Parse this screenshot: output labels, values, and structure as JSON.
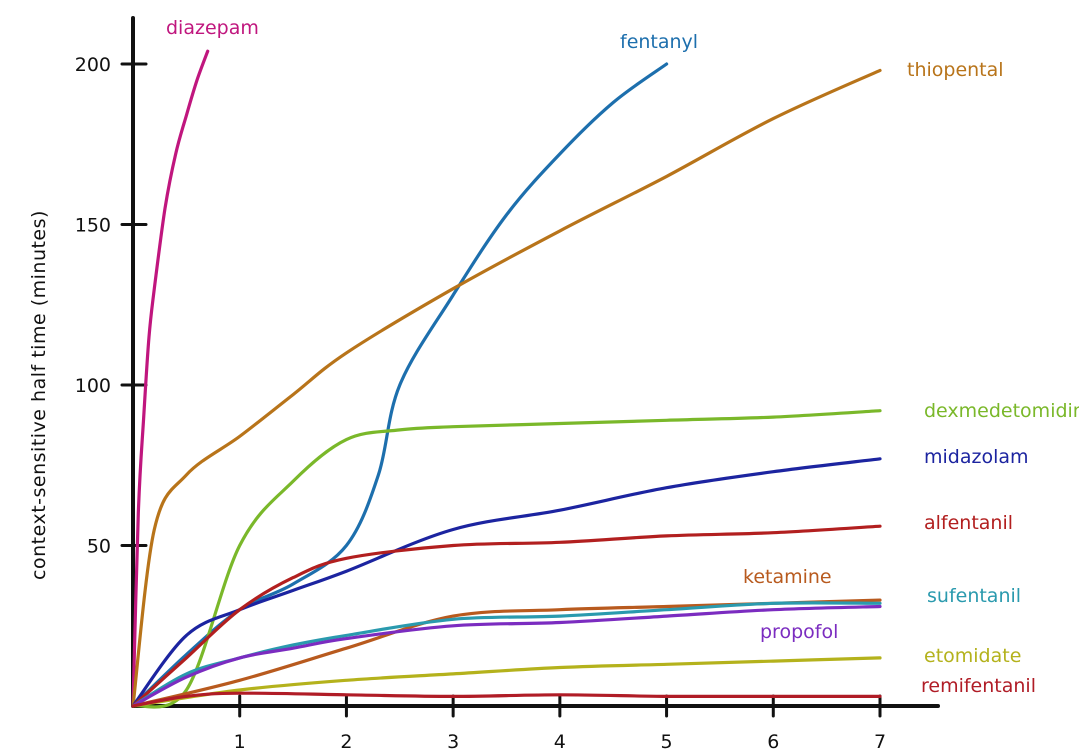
{
  "chart_data": {
    "type": "line",
    "title": "",
    "xlabel": "",
    "ylabel": "context-sensitive half time (minutes)",
    "xlim": [
      0,
      7.2
    ],
    "ylim": [
      0,
      200
    ],
    "x_ticks": [
      1,
      2,
      3,
      4,
      5,
      6,
      7
    ],
    "y_ticks": [
      50,
      100,
      150,
      200
    ],
    "grid": false,
    "legend": "direct labels at line ends",
    "series": [
      {
        "name": "diazepam",
        "color": "#c0167e",
        "x": [
          0,
          0.05,
          0.1,
          0.15,
          0.2,
          0.3,
          0.4,
          0.5,
          0.6,
          0.7
        ],
        "y": [
          0,
          60,
          90,
          115,
          130,
          155,
          172,
          184,
          195,
          204
        ]
      },
      {
        "name": "fentanyl",
        "color": "#1d6fad",
        "x": [
          0,
          0.5,
          1,
          1.5,
          2,
          2.3,
          2.5,
          3,
          3.5,
          4,
          4.5,
          5
        ],
        "y": [
          0,
          16,
          30,
          38,
          50,
          72,
          100,
          128,
          153,
          172,
          188,
          200
        ]
      },
      {
        "name": "thiopental",
        "color": "#b8741a",
        "x": [
          0,
          0.2,
          0.5,
          1,
          1.5,
          2,
          3,
          4,
          5,
          6,
          7
        ],
        "y": [
          0,
          55,
          72,
          84,
          97,
          110,
          130,
          148,
          165,
          183,
          198
        ]
      },
      {
        "name": "dexmedetomidine",
        "color": "#7ab82a",
        "x": [
          0,
          0.5,
          1,
          1.5,
          2,
          2.5,
          3,
          4,
          5,
          6,
          7
        ],
        "y": [
          0,
          5,
          50,
          70,
          83,
          86,
          87,
          88,
          89,
          90,
          92
        ]
      },
      {
        "name": "midazolam",
        "color": "#1c24a0",
        "x": [
          0,
          0.5,
          1,
          1.5,
          2,
          3,
          4,
          5,
          6,
          7
        ],
        "y": [
          0,
          22,
          30,
          36,
          42,
          55,
          61,
          68,
          73,
          77
        ]
      },
      {
        "name": "alfentanil",
        "color": "#b21f1f",
        "x": [
          0,
          0.5,
          1,
          1.5,
          2,
          3,
          4,
          5,
          6,
          7
        ],
        "y": [
          0,
          15,
          30,
          40,
          46,
          50,
          51,
          53,
          54,
          56
        ]
      },
      {
        "name": "ketamine",
        "color": "#b85a1e",
        "x": [
          0,
          1,
          2,
          3,
          4,
          5,
          6,
          7
        ],
        "y": [
          0,
          8,
          18,
          28,
          30,
          31,
          32,
          33
        ]
      },
      {
        "name": "sufentanil",
        "color": "#2a9aae",
        "x": [
          0,
          0.5,
          1,
          1.5,
          2,
          3,
          4,
          5,
          6,
          7
        ],
        "y": [
          0,
          10,
          15,
          19,
          22,
          27,
          28,
          30,
          32,
          32
        ]
      },
      {
        "name": "propofol",
        "color": "#7b2cc0",
        "x": [
          0,
          0.5,
          1,
          1.5,
          2,
          3,
          4,
          5,
          6,
          7
        ],
        "y": [
          0,
          9,
          15,
          18,
          21,
          25,
          26,
          28,
          30,
          31
        ]
      },
      {
        "name": "etomidate",
        "color": "#b4b21c",
        "x": [
          0,
          1,
          2,
          3,
          4,
          5,
          6,
          7
        ],
        "y": [
          0,
          5,
          8,
          10,
          12,
          13,
          14,
          15
        ]
      },
      {
        "name": "remifentanil",
        "color": "#b01c26",
        "x": [
          0,
          0.5,
          1,
          2,
          3,
          4,
          5,
          6,
          7
        ],
        "y": [
          0,
          3,
          4,
          3.5,
          3,
          3.5,
          3,
          3,
          3
        ]
      }
    ]
  }
}
